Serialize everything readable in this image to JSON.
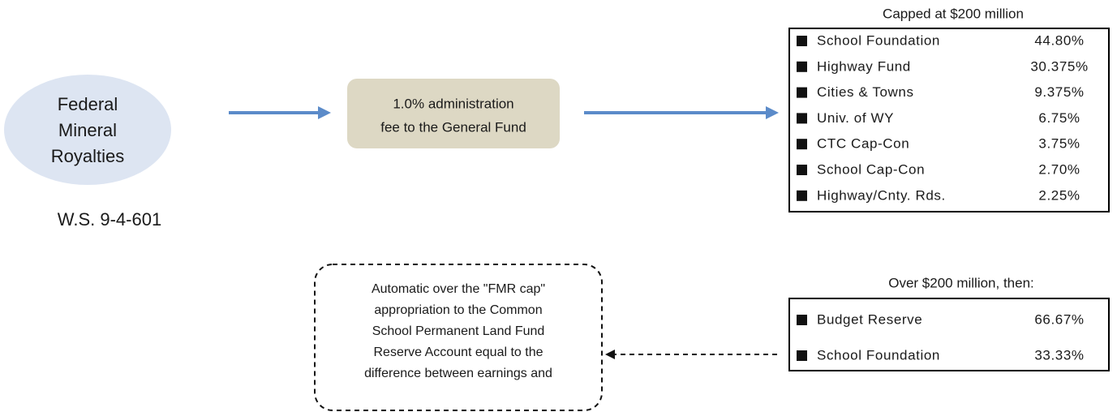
{
  "source": {
    "label": [
      "Federal",
      "Mineral",
      "Royalties"
    ],
    "statute": "W.S. 9-4-601"
  },
  "fee": {
    "label": [
      "1.0% administration",
      "fee to the General Fund"
    ]
  },
  "capped": {
    "title": "Capped at $200 million",
    "rows": [
      [
        "School Foundation",
        "44.80%"
      ],
      [
        "Highway Fund",
        "30.375%"
      ],
      [
        "Cities & Towns",
        "9.375%"
      ],
      [
        "Univ. of WY",
        "6.75%"
      ],
      [
        "CTC Cap-Con",
        "3.75%"
      ],
      [
        "School Cap-Con",
        "2.70%"
      ],
      [
        "Highway/Cnty. Rds.",
        "2.25%"
      ]
    ]
  },
  "over": {
    "title": "Over $200 million, then:",
    "rows": [
      [
        "Budget Reserve",
        "66.67%"
      ],
      [
        "School Foundation",
        "33.33%"
      ]
    ]
  },
  "automatic": {
    "lines": [
      "Automatic over the \"FMR cap\"",
      "appropriation to the Common",
      "School Permanent Land Fund",
      "Reserve Account equal to the",
      "difference between earnings and"
    ]
  }
}
